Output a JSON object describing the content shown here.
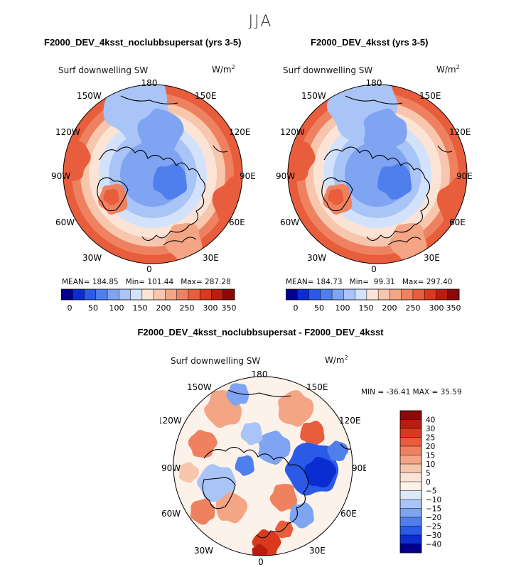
{
  "figure": {
    "season": "JJA",
    "units": "W/m",
    "units_sup": "2",
    "variable": "Surf downwelling SW"
  },
  "colors": {
    "abs_scale": [
      "#00008c",
      "#0a2dd2",
      "#2a5ae6",
      "#4f7fec",
      "#7ea4f2",
      "#a9c4f6",
      "#d3e2fb",
      "#fbe4d6",
      "#f7c6ad",
      "#f3a585",
      "#ee8260",
      "#e85d3c",
      "#d93a1e",
      "#b81d10",
      "#8c0a08"
    ],
    "diff_scale": [
      "#00008c",
      "#0a2dd2",
      "#2a5ae6",
      "#4f7fec",
      "#7ea4f2",
      "#a9c4f6",
      "#dde9fb",
      "#fdf2ea",
      "#fbe4d6",
      "#f7c6ad",
      "#f3a585",
      "#ee8260",
      "#e85d3c",
      "#d93a1e",
      "#b81d10",
      "#8c0a08"
    ],
    "coast": "#000000"
  },
  "panels": [
    {
      "title": "F2000_DEV_4ksst_noclubbsupersat (yrs 3-5)",
      "variable": "Surf downwelling SW",
      "units": "W/m",
      "units_sup": "2",
      "stats": {
        "mean_label": "MEAN=",
        "mean": "184.85",
        "min_label": "Min=",
        "min": "101.44",
        "max_label": "Max=",
        "max": "287.28"
      },
      "colorbar_ticks": [
        "0",
        "50",
        "100",
        "150",
        "200",
        "250",
        "300",
        "350"
      ],
      "lon_labels": {
        "top": "180",
        "bottom": "0",
        "left": "90W",
        "right": "90E",
        "ul1": "150W",
        "ul2": "120W",
        "ll1": "60W",
        "ll2": "30W",
        "ur1": "150E",
        "ur2": "120E",
        "lr1": "60E",
        "lr2": "30E"
      }
    },
    {
      "title": "F2000_DEV_4ksst (yrs 3-5)",
      "variable": "Surf downwelling SW",
      "units": "W/m",
      "units_sup": "2",
      "stats": {
        "mean_label": "MEAN=",
        "mean": "184.73",
        "min_label": "Min=",
        "min": "99.31",
        "max_label": "Max=",
        "max": "297.40"
      },
      "colorbar_ticks": [
        "0",
        "50",
        "100",
        "150",
        "200",
        "250",
        "300",
        "350"
      ],
      "lon_labels": {
        "top": "180",
        "bottom": "0",
        "left": "90W",
        "right": "90E",
        "ul1": "150W",
        "ul2": "120W",
        "ll1": "60W",
        "ll2": "30W",
        "ur1": "150E",
        "ur2": "120E",
        "lr1": "60E",
        "lr2": "30E"
      }
    },
    {
      "title": "F2000_DEV_4ksst_noclubbsupersat - F2000_DEV_4ksst",
      "variable": "Surf downwelling SW",
      "units": "W/m",
      "units_sup": "2",
      "stats_text": "MIN = -36.41 MAX =  35.59",
      "colorbar_ticks": [
        "40",
        "30",
        "25",
        "20",
        "15",
        "10",
        "5",
        "0",
        "−5",
        "−10",
        "−15",
        "−20",
        "−25",
        "−30",
        "−40"
      ],
      "lon_labels": {
        "top": "180",
        "bottom": "0",
        "left": "90W",
        "right": "90E",
        "ul1": "150W",
        "ul2": "120W",
        "ll1": "60W",
        "ll2": "30W",
        "ur1": "150E",
        "ur2": "120E",
        "lr1": "60E",
        "lr2": "30E"
      }
    }
  ],
  "chart_data": [
    {
      "type": "heatmap",
      "projection": "north polar stereographic",
      "title": "F2000_DEV_4ksst_noclubbsupersat (yrs 3-5)",
      "variable": "Surf downwelling SW",
      "units": "W/m2",
      "mean": 184.85,
      "min": 101.44,
      "max": 287.28,
      "contour_levels": [
        0,
        25,
        50,
        75,
        100,
        125,
        150,
        175,
        200,
        225,
        250,
        275,
        300,
        325,
        350
      ],
      "colorbar_labels": [
        0,
        50,
        100,
        150,
        200,
        250,
        300,
        350
      ],
      "center_lon": 0,
      "lon_labels": [
        "180",
        "150E",
        "120E",
        "90E",
        "60E",
        "30E",
        "0",
        "30W",
        "60W",
        "90W",
        "120W",
        "150W"
      ]
    },
    {
      "type": "heatmap",
      "projection": "north polar stereographic",
      "title": "F2000_DEV_4ksst (yrs 3-5)",
      "variable": "Surf downwelling SW",
      "units": "W/m2",
      "mean": 184.73,
      "min": 99.31,
      "max": 297.4,
      "contour_levels": [
        0,
        25,
        50,
        75,
        100,
        125,
        150,
        175,
        200,
        225,
        250,
        275,
        300,
        325,
        350
      ],
      "colorbar_labels": [
        0,
        50,
        100,
        150,
        200,
        250,
        300,
        350
      ],
      "center_lon": 0,
      "lon_labels": [
        "180",
        "150E",
        "120E",
        "90E",
        "60E",
        "30E",
        "0",
        "30W",
        "60W",
        "90W",
        "120W",
        "150W"
      ]
    },
    {
      "type": "heatmap",
      "projection": "north polar stereographic",
      "title": "F2000_DEV_4ksst_noclubbsupersat - F2000_DEV_4ksst",
      "variable": "Surf downwelling SW",
      "units": "W/m2",
      "min": -36.41,
      "max": 35.59,
      "contour_levels": [
        -40,
        -30,
        -25,
        -20,
        -15,
        -10,
        -5,
        0,
        5,
        10,
        15,
        20,
        25,
        30,
        40
      ],
      "colorbar_labels": [
        40,
        30,
        25,
        20,
        15,
        10,
        5,
        0,
        -5,
        -10,
        -15,
        -20,
        -25,
        -30,
        -40
      ],
      "center_lon": 0,
      "lon_labels": [
        "180",
        "150E",
        "120E",
        "90E",
        "60E",
        "30E",
        "0",
        "30W",
        "60W",
        "90W",
        "120W",
        "150W"
      ]
    }
  ]
}
